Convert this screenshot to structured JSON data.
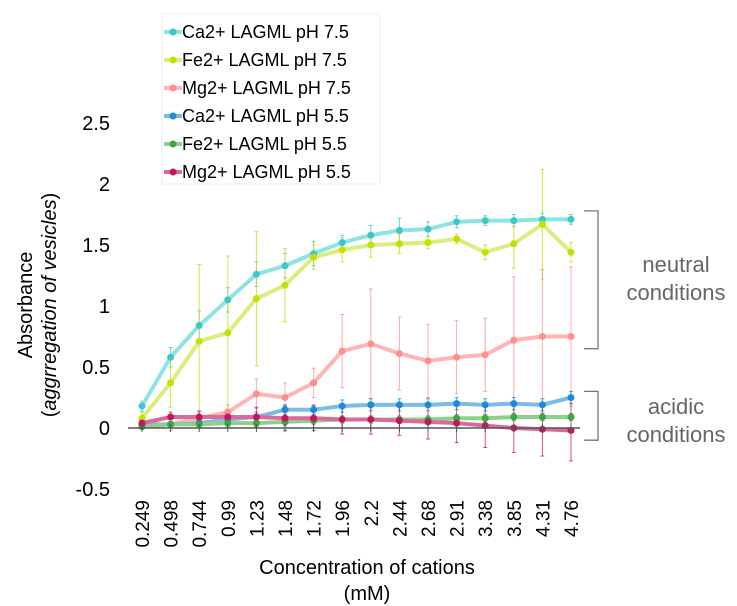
{
  "chart_data": {
    "type": "line",
    "xlabel": "Concentration of cations",
    "xlabel_unit": "(mM)",
    "ylabel": "Absorbance",
    "ylabel_sub": "aggrregation of vesicles",
    "ylim": [
      -0.5,
      2.5
    ],
    "yticks": [
      "2.5",
      "2",
      "1.5",
      "1",
      "0.5",
      "0",
      "-0.5"
    ],
    "ytick_values": [
      2.5,
      2,
      1.5,
      1,
      0.5,
      0,
      -0.5
    ],
    "categories": [
      "0.249",
      "0.498",
      "0.744",
      "0.99",
      "1.23",
      "1.48",
      "1.72",
      "1.96",
      "2.2",
      "2.44",
      "2.68",
      "2.91",
      "3.38",
      "3.85",
      "4.31",
      "4.76"
    ],
    "legend_position": "top-left",
    "grid": false,
    "series": [
      {
        "name": "Ca2+ LAGML pH 7.5",
        "color": "#3cc8c8",
        "line_color": "#8ee3e3",
        "values": [
          0.18,
          0.58,
          0.84,
          1.05,
          1.26,
          1.33,
          1.43,
          1.52,
          1.58,
          1.62,
          1.63,
          1.69,
          1.7,
          1.7,
          1.71,
          1.71
        ],
        "errors": [
          0.04,
          0.08,
          0.12,
          0.1,
          0.1,
          0.1,
          0.1,
          0.06,
          0.08,
          0.1,
          0.06,
          0.05,
          0.04,
          0.05,
          0.05,
          0.04
        ]
      },
      {
        "name": "Fe2+ LAGML pH 7.5",
        "color": "#c4e000",
        "line_color": "#d9ee7c",
        "values": [
          0.08,
          0.37,
          0.71,
          0.78,
          1.06,
          1.17,
          1.4,
          1.46,
          1.5,
          1.51,
          1.52,
          1.55,
          1.44,
          1.51,
          1.67,
          1.44
        ],
        "errors": [
          0.05,
          0.2,
          0.63,
          0.63,
          0.55,
          0.3,
          0.1,
          0.1,
          0.1,
          0.08,
          0.05,
          0.04,
          0.06,
          0.2,
          0.45,
          0.08
        ]
      },
      {
        "name": "Mg2+ LAGML pH 7.5",
        "color": "#ff8f8f",
        "line_color": "#ffb5b5",
        "values": [
          0.03,
          0.03,
          0.08,
          0.13,
          0.28,
          0.25,
          0.37,
          0.63,
          0.69,
          0.61,
          0.55,
          0.58,
          0.6,
          0.72,
          0.75,
          0.75
        ],
        "errors": [
          0.02,
          0.05,
          0.05,
          0.06,
          0.12,
          0.12,
          0.12,
          0.3,
          0.45,
          0.3,
          0.3,
          0.3,
          0.3,
          0.52,
          0.55,
          0.57
        ]
      },
      {
        "name": "Ca2+ LAGML pH 5.5",
        "color": "#1a8cd8",
        "line_color": "#7dbce8",
        "values": [
          0.03,
          0.03,
          0.04,
          0.07,
          0.09,
          0.15,
          0.15,
          0.18,
          0.19,
          0.19,
          0.19,
          0.2,
          0.19,
          0.2,
          0.19,
          0.25
        ],
        "errors": [
          0.02,
          0.02,
          0.03,
          0.03,
          0.04,
          0.04,
          0.04,
          0.05,
          0.05,
          0.05,
          0.05,
          0.05,
          0.05,
          0.05,
          0.05,
          0.05
        ]
      },
      {
        "name": "Fe2+ LAGML pH 5.5",
        "color": "#3da83d",
        "line_color": "#8fd08f",
        "values": [
          0.01,
          0.03,
          0.03,
          0.04,
          0.04,
          0.05,
          0.06,
          0.07,
          0.07,
          0.07,
          0.07,
          0.08,
          0.08,
          0.09,
          0.09,
          0.09
        ],
        "errors": [
          0.02,
          0.02,
          0.02,
          0.03,
          0.03,
          0.03,
          0.03,
          0.03,
          0.03,
          0.03,
          0.03,
          0.03,
          0.03,
          0.03,
          0.03,
          0.03
        ]
      },
      {
        "name": "Mg2+ LAGML pH 5.5",
        "color": "#c0185c",
        "line_color": "#d96a9a",
        "values": [
          0.04,
          0.09,
          0.09,
          0.09,
          0.09,
          0.08,
          0.08,
          0.07,
          0.07,
          0.06,
          0.05,
          0.04,
          0.02,
          0.0,
          -0.01,
          -0.02
        ],
        "errors": [
          0.03,
          0.04,
          0.05,
          0.06,
          0.08,
          0.1,
          0.1,
          0.12,
          0.12,
          0.12,
          0.14,
          0.16,
          0.18,
          0.2,
          0.22,
          0.25
        ]
      }
    ],
    "annotations": [
      {
        "lines": [
          "neutral",
          "conditions"
        ],
        "y_range": [
          0.65,
          1.78
        ]
      },
      {
        "lines": [
          "acidic",
          "conditions"
        ],
        "y_range": [
          -0.1,
          0.3
        ]
      }
    ]
  }
}
